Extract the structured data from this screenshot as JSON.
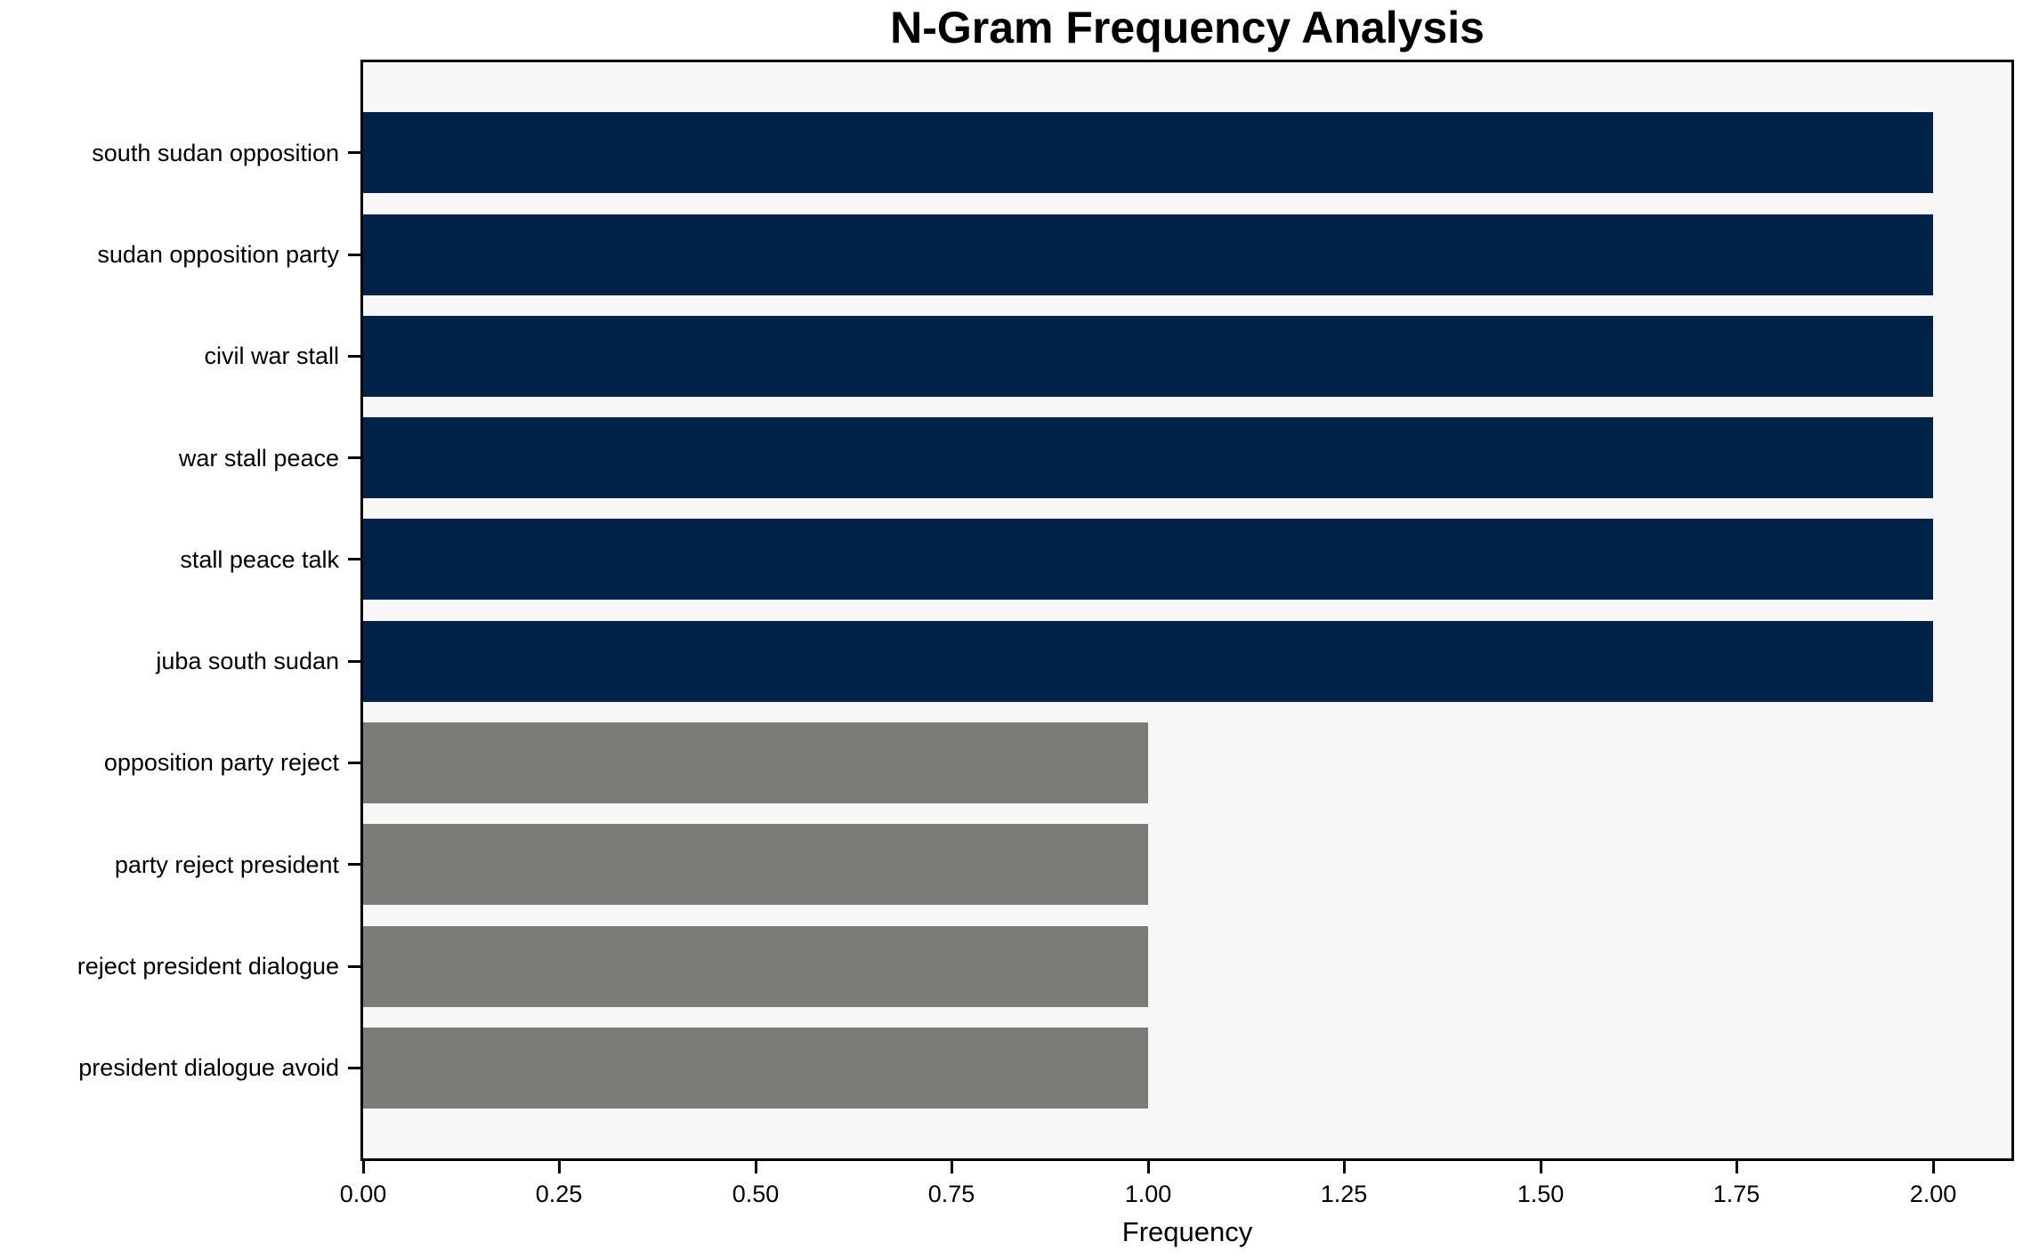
{
  "chart_data": {
    "type": "bar",
    "orientation": "horizontal",
    "title": "N-Gram Frequency Analysis",
    "xlabel": "Frequency",
    "ylabel": "",
    "categories": [
      "south sudan opposition",
      "sudan opposition party",
      "civil war stall",
      "war stall peace",
      "stall peace talk",
      "juba south sudan",
      "opposition party reject",
      "party reject president",
      "reject president dialogue",
      "president dialogue avoid"
    ],
    "values": [
      2,
      2,
      2,
      2,
      2,
      2,
      1,
      1,
      1,
      1
    ],
    "bar_colors": [
      "#022349",
      "#022349",
      "#022349",
      "#022349",
      "#022349",
      "#022349",
      "#7b7b78",
      "#7b7b78",
      "#7b7b78",
      "#7b7b78"
    ],
    "xlim": [
      0,
      2.1
    ],
    "xticks": [
      {
        "value": 0.0,
        "label": "0.00"
      },
      {
        "value": 0.25,
        "label": "0.25"
      },
      {
        "value": 0.5,
        "label": "0.50"
      },
      {
        "value": 0.75,
        "label": "0.75"
      },
      {
        "value": 1.0,
        "label": "1.00"
      },
      {
        "value": 1.25,
        "label": "1.25"
      },
      {
        "value": 1.5,
        "label": "1.50"
      },
      {
        "value": 1.75,
        "label": "1.75"
      },
      {
        "value": 2.0,
        "label": "2.00"
      }
    ],
    "grid": false,
    "legend_visible": false,
    "plot_background": "#f7f7f7",
    "figure_background": "#ffffff",
    "spine_color": "#000000"
  }
}
